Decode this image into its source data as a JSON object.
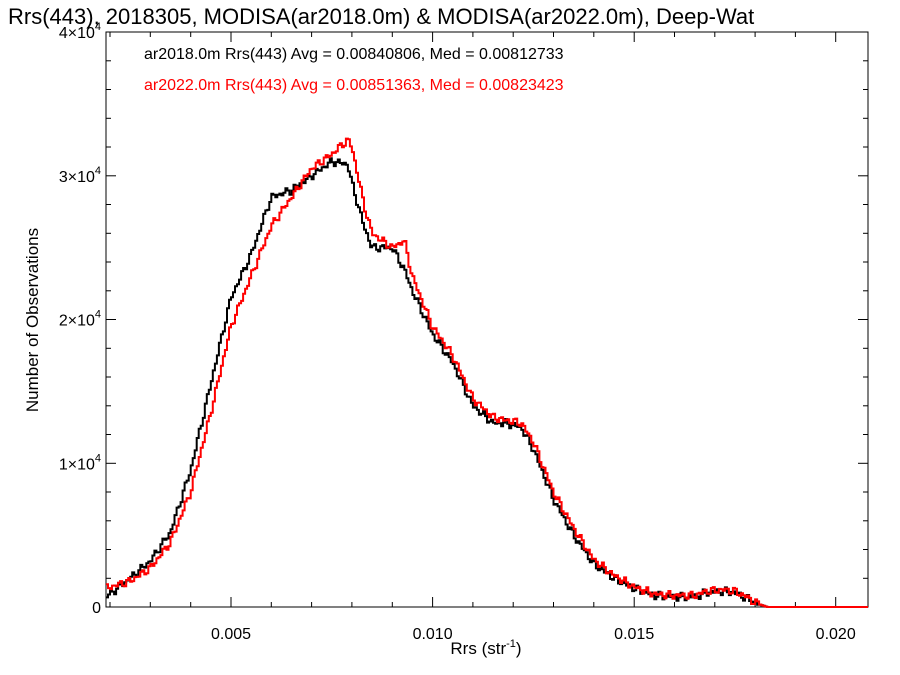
{
  "chart_data": {
    "type": "line",
    "title": "Rrs(443), 2018305, MODISA(ar2018.0m) & MODISA(ar2022.0m), Deep-Wat",
    "xlabel": "Rrs (str",
    "xlabel_sup": "-1",
    "xlabel_close": ")",
    "ylabel": "Number of Observations",
    "xlim": [
      0.0019,
      0.0208
    ],
    "ylim": [
      0,
      40000
    ],
    "xticks": [
      {
        "value": 0.005,
        "label": "0.005"
      },
      {
        "value": 0.01,
        "label": "0.010"
      },
      {
        "value": 0.015,
        "label": "0.015"
      },
      {
        "value": 0.02,
        "label": "0.020"
      }
    ],
    "yticks": [
      {
        "value": 0,
        "label": "0",
        "sup": ""
      },
      {
        "value": 10000,
        "label": "1×10",
        "sup": "4"
      },
      {
        "value": 20000,
        "label": "2×10",
        "sup": "4"
      },
      {
        "value": 30000,
        "label": "3×10",
        "sup": "4"
      },
      {
        "value": 40000,
        "label": "4×10",
        "sup": "4"
      }
    ],
    "legend_position": "top-left",
    "series": [
      {
        "name": "ar2018.0m",
        "color": "#000000",
        "legend_text": "ar2018.0m Rrs(443) Avg = 0.00840806, Med = 0.00812733",
        "x": [
          0.0019,
          0.0025,
          0.003,
          0.0035,
          0.004,
          0.0045,
          0.005,
          0.0055,
          0.006,
          0.0065,
          0.007,
          0.0075,
          0.0079,
          0.008,
          0.0083,
          0.0085,
          0.009,
          0.0093,
          0.0095,
          0.01,
          0.0105,
          0.011,
          0.0115,
          0.0118,
          0.0122,
          0.0125,
          0.013,
          0.0135,
          0.014,
          0.0145,
          0.015,
          0.0155,
          0.016,
          0.0165,
          0.0168,
          0.0172,
          0.0175,
          0.0178,
          0.018,
          0.0183,
          0.0185,
          0.019,
          0.0208
        ],
        "y": [
          700,
          2000,
          3200,
          5200,
          9500,
          15500,
          21500,
          24500,
          28500,
          29000,
          30000,
          31000,
          30800,
          29500,
          26500,
          25000,
          25000,
          23500,
          22000,
          19000,
          17000,
          14000,
          12800,
          12800,
          12500,
          11000,
          7500,
          5000,
          3000,
          2000,
          1300,
          800,
          700,
          700,
          1000,
          1100,
          1000,
          600,
          300,
          0,
          0,
          0,
          0
        ]
      },
      {
        "name": "ar2022.0m",
        "color": "#ff0000",
        "legend_text": "ar2022.0m Rrs(443) Avg = 0.00851363, Med = 0.00823423",
        "x": [
          0.0019,
          0.0025,
          0.003,
          0.0035,
          0.004,
          0.0045,
          0.005,
          0.0055,
          0.006,
          0.0065,
          0.007,
          0.0075,
          0.0079,
          0.008,
          0.0083,
          0.0085,
          0.009,
          0.0093,
          0.0095,
          0.01,
          0.0105,
          0.011,
          0.0115,
          0.0118,
          0.0122,
          0.0125,
          0.013,
          0.0135,
          0.014,
          0.0145,
          0.015,
          0.0155,
          0.016,
          0.0165,
          0.0168,
          0.0172,
          0.0175,
          0.0178,
          0.018,
          0.0183,
          0.0185,
          0.019,
          0.0208
        ],
        "y": [
          1300,
          1800,
          2700,
          4500,
          8000,
          13500,
          19500,
          23000,
          26500,
          28500,
          30500,
          31500,
          32500,
          32000,
          28000,
          26000,
          25000,
          25500,
          23000,
          19500,
          17500,
          14500,
          13200,
          13000,
          12800,
          11500,
          8000,
          5500,
          3300,
          2200,
          1400,
          900,
          800,
          800,
          1100,
          1200,
          1100,
          700,
          300,
          0,
          0,
          0,
          0
        ]
      }
    ]
  }
}
